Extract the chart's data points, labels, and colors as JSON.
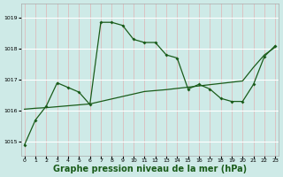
{
  "background_color": "#ceeae7",
  "grid_color_h": "#ffffff",
  "grid_color_v": "#ddbcbc",
  "line_color": "#1a5c1a",
  "xlabel": "Graphe pression niveau de la mer (hPa)",
  "xlabel_fontsize": 7,
  "ylabel_ticks": [
    1015,
    1016,
    1017,
    1018,
    1019
  ],
  "xlim": [
    -0.3,
    23.3
  ],
  "ylim": [
    1014.55,
    1019.45
  ],
  "series1_x": [
    0,
    1,
    2,
    3,
    4,
    5,
    6,
    7,
    8,
    9,
    10,
    11,
    12,
    13,
    14,
    15,
    16,
    17,
    18,
    19,
    20,
    21,
    22,
    23
  ],
  "series1_y": [
    1014.9,
    1015.7,
    1016.15,
    1016.9,
    1016.75,
    1016.6,
    1016.2,
    1018.85,
    1018.85,
    1018.75,
    1018.3,
    1018.2,
    1018.2,
    1017.8,
    1017.7,
    1016.7,
    1016.85,
    1016.7,
    1016.4,
    1016.3,
    1016.3,
    1016.85,
    1017.75,
    1018.1
  ],
  "series2_x": [
    0,
    1,
    2,
    3,
    4,
    5,
    6,
    7,
    8,
    9,
    10,
    11,
    12,
    13,
    14,
    15,
    16,
    17,
    18,
    19,
    20,
    21,
    22,
    23
  ],
  "series2_y": [
    1016.05,
    1016.08,
    1016.1,
    1016.13,
    1016.16,
    1016.19,
    1016.22,
    1016.3,
    1016.38,
    1016.46,
    1016.54,
    1016.62,
    1016.65,
    1016.68,
    1016.72,
    1016.76,
    1016.8,
    1016.84,
    1016.88,
    1016.92,
    1016.96,
    1017.4,
    1017.8,
    1018.05
  ],
  "xticks": [
    0,
    1,
    2,
    3,
    4,
    5,
    6,
    7,
    8,
    9,
    10,
    11,
    12,
    13,
    14,
    15,
    16,
    17,
    18,
    19,
    20,
    21,
    22,
    23
  ]
}
